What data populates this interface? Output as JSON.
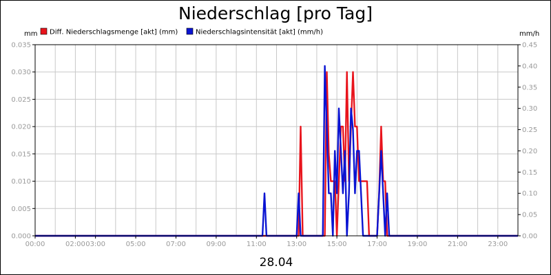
{
  "chart_data": {
    "type": "line",
    "title": "Niederschlag [pro Tag]",
    "left_unit": "mm",
    "right_unit": "mm/h",
    "date_label": "28.04",
    "x_tick_labels": [
      "00:00",
      "02:00",
      "03:00",
      "05:00",
      "07:00",
      "09:00",
      "11:00",
      "13:00",
      "15:00",
      "17:00",
      "19:00",
      "21:00",
      "23:00"
    ],
    "x_tick_hours": [
      0,
      2,
      3,
      5,
      7,
      9,
      11,
      13,
      15,
      17,
      19,
      21,
      23
    ],
    "x_range_hours": [
      0,
      24
    ],
    "y_left": {
      "min": 0,
      "max": 0.035,
      "ticks": [
        "0.000",
        "0.005",
        "0.010",
        "0.015",
        "0.020",
        "0.025",
        "0.030",
        "0.035"
      ]
    },
    "y_right": {
      "min": 0,
      "max": 0.45,
      "ticks": [
        "0.00",
        "0.05",
        "0.10",
        "0.15",
        "0.20",
        "0.25",
        "0.30",
        "0.35",
        "0.40",
        "0.45"
      ]
    },
    "grid": true,
    "legend_position": "top",
    "series": [
      {
        "name": "Diff. Niederschlagsmenge [akt] (mm)",
        "axis": "left",
        "color": "#e8141c",
        "points": [
          [
            0,
            0
          ],
          [
            13.0,
            0
          ],
          [
            13.1,
            0
          ],
          [
            13.2,
            0.02
          ],
          [
            13.3,
            0
          ],
          [
            14.3,
            0
          ],
          [
            14.4,
            0
          ],
          [
            14.5,
            0.03
          ],
          [
            14.6,
            0.015
          ],
          [
            14.7,
            0.01
          ],
          [
            14.9,
            0.01
          ],
          [
            15.0,
            0
          ],
          [
            15.1,
            0.01
          ],
          [
            15.2,
            0.02
          ],
          [
            15.3,
            0.02
          ],
          [
            15.4,
            0.01
          ],
          [
            15.5,
            0.03
          ],
          [
            15.6,
            0.01
          ],
          [
            15.7,
            0.02
          ],
          [
            15.8,
            0.03
          ],
          [
            15.9,
            0.02
          ],
          [
            16.0,
            0.02
          ],
          [
            16.1,
            0.01
          ],
          [
            16.5,
            0.01
          ],
          [
            16.6,
            0
          ],
          [
            17.0,
            0
          ],
          [
            17.1,
            0.008
          ],
          [
            17.2,
            0.02
          ],
          [
            17.3,
            0.01
          ],
          [
            17.4,
            0.01
          ],
          [
            17.5,
            0
          ],
          [
            24,
            0
          ]
        ]
      },
      {
        "name": "Niederschlagsintensität [akt] (mm/h)",
        "axis": "right",
        "color": "#0a14d2",
        "points": [
          [
            0,
            0
          ],
          [
            11.3,
            0
          ],
          [
            11.4,
            0.1
          ],
          [
            11.5,
            0
          ],
          [
            13.0,
            0
          ],
          [
            13.1,
            0.1
          ],
          [
            13.2,
            0
          ],
          [
            14.3,
            0
          ],
          [
            14.4,
            0.4
          ],
          [
            14.5,
            0.25
          ],
          [
            14.6,
            0.1
          ],
          [
            14.7,
            0.1
          ],
          [
            14.8,
            0
          ],
          [
            14.9,
            0.2
          ],
          [
            15.0,
            0.1
          ],
          [
            15.1,
            0.3
          ],
          [
            15.2,
            0.2
          ],
          [
            15.3,
            0.1
          ],
          [
            15.4,
            0.2
          ],
          [
            15.5,
            0
          ],
          [
            15.6,
            0.1
          ],
          [
            15.7,
            0.3
          ],
          [
            15.8,
            0.25
          ],
          [
            15.9,
            0.1
          ],
          [
            16.0,
            0.2
          ],
          [
            16.1,
            0.2
          ],
          [
            16.2,
            0.1
          ],
          [
            16.3,
            0
          ],
          [
            17.0,
            0
          ],
          [
            17.1,
            0.1
          ],
          [
            17.2,
            0.2
          ],
          [
            17.3,
            0.1
          ],
          [
            17.4,
            0
          ],
          [
            17.5,
            0.1
          ],
          [
            17.6,
            0
          ],
          [
            24,
            0
          ]
        ]
      }
    ]
  }
}
